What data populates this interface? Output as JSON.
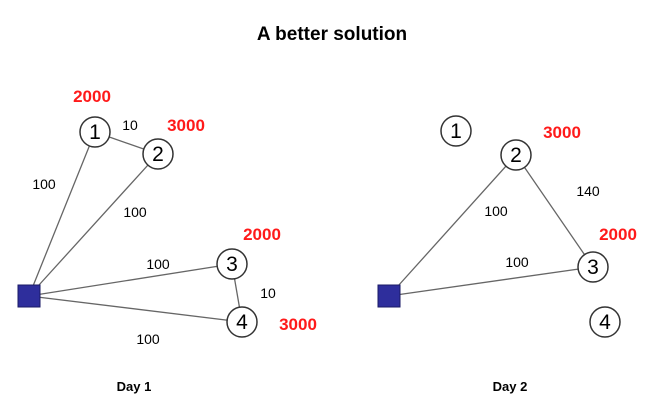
{
  "title": "A better solution",
  "panels": [
    {
      "label": "Day 1",
      "nodes": [
        {
          "id": "1",
          "demand": "2000"
        },
        {
          "id": "2",
          "demand": "3000"
        },
        {
          "id": "3",
          "demand": "2000"
        },
        {
          "id": "4",
          "demand": "3000"
        }
      ],
      "edges": [
        {
          "from": "depot",
          "to": "1",
          "weight": "100"
        },
        {
          "from": "1",
          "to": "2",
          "weight": "10"
        },
        {
          "from": "depot",
          "to": "2",
          "weight": "100"
        },
        {
          "from": "depot",
          "to": "3",
          "weight": "100"
        },
        {
          "from": "3",
          "to": "4",
          "weight": "10"
        },
        {
          "from": "depot",
          "to": "4",
          "weight": "100"
        }
      ]
    },
    {
      "label": "Day 2",
      "nodes": [
        {
          "id": "1",
          "demand": ""
        },
        {
          "id": "2",
          "demand": "3000"
        },
        {
          "id": "3",
          "demand": "2000"
        },
        {
          "id": "4",
          "demand": ""
        }
      ],
      "edges": [
        {
          "from": "depot",
          "to": "2",
          "weight": "100"
        },
        {
          "from": "2",
          "to": "3",
          "weight": "140"
        },
        {
          "from": "depot",
          "to": "3",
          "weight": "100"
        }
      ]
    }
  ],
  "colors": {
    "demand": "#ff1a1a",
    "depot": "#2e2e9c",
    "edge": "#666666"
  }
}
